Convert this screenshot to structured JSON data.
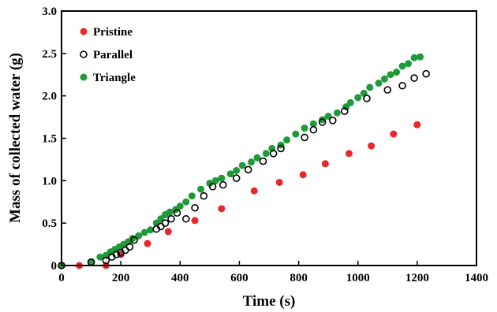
{
  "chart_data": {
    "type": "scatter",
    "xlabel": "Time (s)",
    "ylabel": "Mass of collected water (g)",
    "xlim": [
      0,
      1400
    ],
    "ylim": [
      0,
      3.0
    ],
    "xticks": [
      "0",
      "200",
      "400",
      "600",
      "800",
      "1000",
      "1200",
      "1400"
    ],
    "yticks": [
      "0",
      "0.5",
      "1.0",
      "1.5",
      "2.0",
      "2.5",
      "3.0"
    ],
    "grid": false,
    "legend_position": "top-left",
    "colors": {
      "Pristine": "#e8282b",
      "Parallel": "#000000",
      "Triangle": "#1f9a3a"
    },
    "series": [
      {
        "name": "Pristine",
        "marker": "filled-circle",
        "x": [
          0,
          60,
          150,
          200,
          290,
          360,
          450,
          540,
          650,
          735,
          815,
          890,
          970,
          1045,
          1120,
          1200
        ],
        "y": [
          0,
          0,
          0,
          0.13,
          0.26,
          0.4,
          0.53,
          0.67,
          0.88,
          0.98,
          1.07,
          1.2,
          1.32,
          1.41,
          1.55,
          1.66
        ]
      },
      {
        "name": "Parallel",
        "marker": "open-circle",
        "x": [
          0,
          100,
          150,
          170,
          185,
          200,
          215,
          230,
          245,
          320,
          335,
          350,
          370,
          390,
          420,
          450,
          480,
          510,
          545,
          590,
          630,
          680,
          715,
          740,
          820,
          850,
          880,
          915,
          955,
          1030,
          1100,
          1150,
          1190,
          1230
        ],
        "y": [
          0,
          0.04,
          0.06,
          0.1,
          0.13,
          0.15,
          0.18,
          0.22,
          0.3,
          0.43,
          0.46,
          0.5,
          0.55,
          0.62,
          0.55,
          0.68,
          0.82,
          0.93,
          0.95,
          1.03,
          1.13,
          1.23,
          1.32,
          1.38,
          1.51,
          1.6,
          1.69,
          1.71,
          1.82,
          1.97,
          2.07,
          2.12,
          2.21,
          2.26
        ]
      },
      {
        "name": "Triangle",
        "marker": "filled-circle",
        "x": [
          0,
          100,
          130,
          150,
          165,
          180,
          195,
          210,
          225,
          240,
          260,
          280,
          300,
          320,
          335,
          350,
          365,
          385,
          400,
          420,
          440,
          470,
          500,
          520,
          540,
          570,
          590,
          610,
          640,
          660,
          690,
          710,
          740,
          760,
          790,
          820,
          850,
          880,
          900,
          930,
          960,
          975,
          1000,
          1020,
          1040,
          1070,
          1090,
          1110,
          1130,
          1150,
          1170,
          1190,
          1210
        ],
        "y": [
          0,
          0.04,
          0.1,
          0.12,
          0.16,
          0.19,
          0.22,
          0.25,
          0.28,
          0.32,
          0.35,
          0.39,
          0.42,
          0.5,
          0.55,
          0.6,
          0.63,
          0.66,
          0.7,
          0.75,
          0.82,
          0.9,
          0.97,
          1.0,
          1.03,
          1.08,
          1.12,
          1.18,
          1.22,
          1.27,
          1.32,
          1.38,
          1.42,
          1.48,
          1.55,
          1.62,
          1.67,
          1.72,
          1.76,
          1.8,
          1.87,
          1.92,
          1.98,
          2.03,
          2.1,
          2.15,
          2.2,
          2.25,
          2.28,
          2.35,
          2.38,
          2.45,
          2.46
        ]
      }
    ]
  }
}
